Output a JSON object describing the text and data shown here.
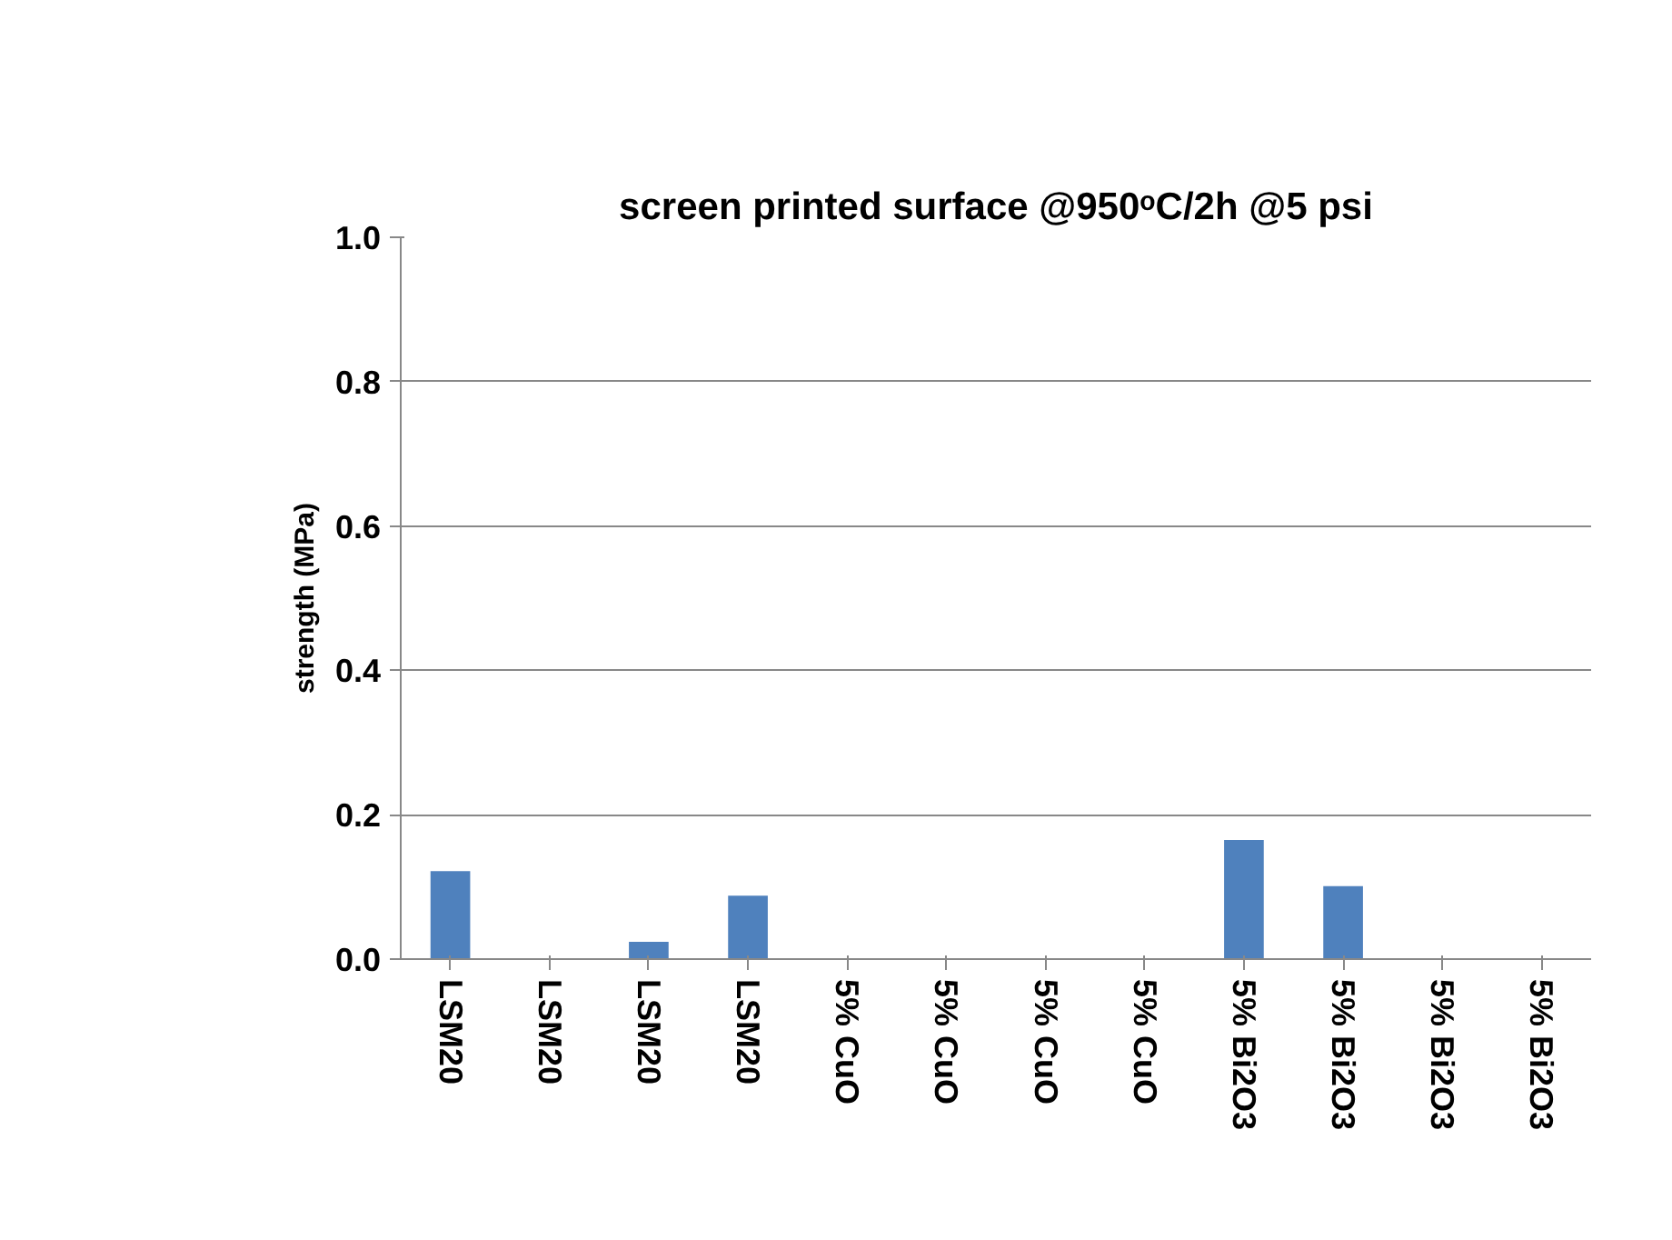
{
  "chart_data": {
    "type": "bar",
    "title": "screen printed surface @950ᵒC/2h @5 psi",
    "ylabel": "strength (MPa)",
    "categories": [
      "LSM20",
      "LSM20",
      "LSM20",
      "LSM20",
      "5% CuO",
      "5% CuO",
      "5% CuO",
      "5% CuO",
      "5% Bi2O3",
      "5% Bi2O3",
      "5% Bi2O3",
      "5% Bi2O3"
    ],
    "values": [
      0.122,
      0,
      0.024,
      0.088,
      0,
      0,
      0,
      0,
      0.165,
      0.101,
      0,
      0
    ],
    "color": "#4f81bd",
    "ylim": [
      0,
      1.0
    ],
    "yticks": [
      {
        "value": 0,
        "label": "0.0"
      },
      {
        "value": 0.2,
        "label": "0.2"
      },
      {
        "value": 0.4,
        "label": "0.4"
      },
      {
        "value": 0.6,
        "label": "0.6"
      },
      {
        "value": 0.8,
        "label": "0.8"
      },
      {
        "value": 1.0,
        "label": "1.0"
      }
    ],
    "grid": "y"
  }
}
